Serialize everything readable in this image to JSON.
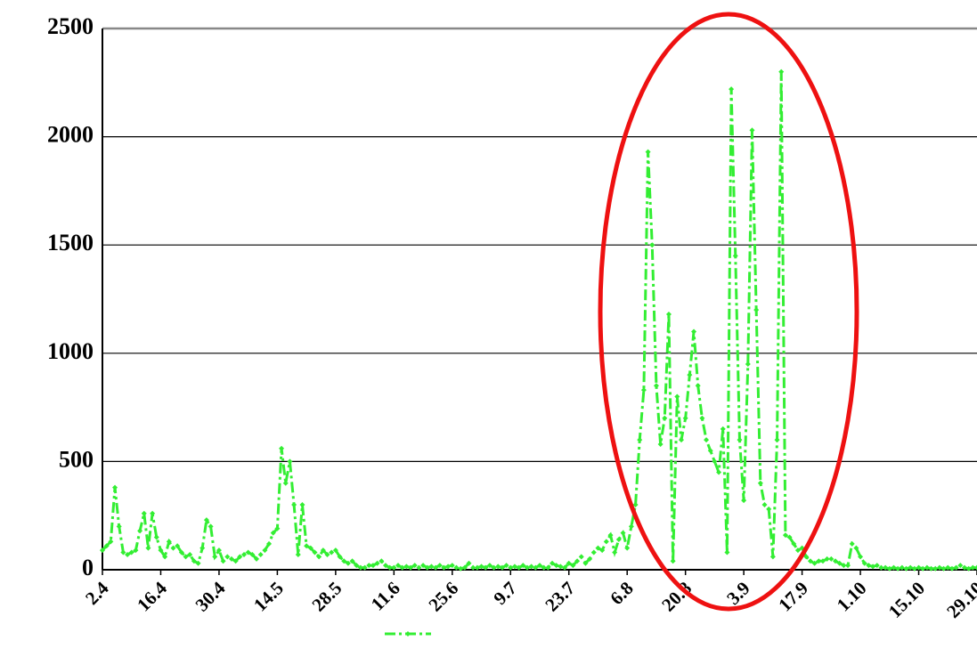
{
  "chart_data": {
    "type": "line",
    "categories": [
      "2.4",
      null,
      null,
      null,
      null,
      null,
      null,
      null,
      null,
      null,
      null,
      null,
      null,
      null,
      "16.4",
      null,
      null,
      null,
      null,
      null,
      null,
      null,
      null,
      null,
      null,
      null,
      null,
      null,
      "30.4",
      null,
      null,
      null,
      null,
      null,
      null,
      null,
      null,
      null,
      null,
      null,
      null,
      null,
      "14.5",
      null,
      null,
      null,
      null,
      null,
      null,
      null,
      null,
      null,
      null,
      null,
      null,
      null,
      "28.5",
      null,
      null,
      null,
      null,
      null,
      null,
      null,
      null,
      null,
      null,
      null,
      null,
      null,
      "11.6",
      null,
      null,
      null,
      null,
      null,
      null,
      null,
      null,
      null,
      null,
      null,
      null,
      null,
      "25.6",
      null,
      null,
      null,
      null,
      null,
      null,
      null,
      null,
      null,
      null,
      null,
      null,
      null,
      "9.7",
      null,
      null,
      null,
      null,
      null,
      null,
      null,
      null,
      null,
      null,
      null,
      null,
      null,
      "23.7",
      null,
      null,
      null,
      null,
      null,
      null,
      null,
      null,
      null,
      null,
      null,
      null,
      null,
      "6.8",
      null,
      null,
      null,
      null,
      null,
      null,
      null,
      null,
      null,
      null,
      null,
      null,
      null,
      "20.8",
      null,
      null,
      null,
      null,
      null,
      null,
      null,
      null,
      null,
      null,
      null,
      null,
      null,
      "3.9",
      null,
      null,
      null,
      null,
      null,
      null,
      null,
      null,
      null,
      null,
      null,
      null,
      null,
      "17.9",
      null,
      null,
      null,
      null,
      null,
      null,
      null,
      null,
      null,
      null,
      null,
      null,
      null,
      "1.10",
      null,
      null,
      null,
      null,
      null,
      null,
      null,
      null,
      null,
      null,
      null,
      null,
      null,
      "15.10",
      null,
      null,
      null,
      null,
      null,
      null,
      null,
      null,
      null,
      null,
      null,
      null,
      null,
      "29.10"
    ],
    "series": [
      {
        "color": "#33ee33",
        "values": [
          90,
          110,
          130,
          380,
          200,
          80,
          70,
          80,
          90,
          180,
          260,
          100,
          260,
          150,
          90,
          60,
          130,
          100,
          110,
          80,
          60,
          70,
          40,
          30,
          100,
          230,
          200,
          60,
          90,
          40,
          60,
          50,
          40,
          60,
          70,
          80,
          70,
          50,
          70,
          90,
          120,
          170,
          190,
          560,
          400,
          500,
          300,
          70,
          300,
          110,
          100,
          80,
          60,
          90,
          70,
          80,
          90,
          60,
          40,
          30,
          40,
          20,
          10,
          10,
          20,
          20,
          30,
          40,
          20,
          10,
          10,
          20,
          10,
          15,
          10,
          20,
          10,
          20,
          10,
          15,
          10,
          20,
          10,
          15,
          20,
          10,
          5,
          10,
          30,
          10,
          10,
          15,
          10,
          20,
          10,
          15,
          10,
          20,
          10,
          15,
          10,
          20,
          10,
          15,
          10,
          20,
          10,
          10,
          30,
          20,
          15,
          10,
          30,
          20,
          40,
          60,
          30,
          50,
          80,
          100,
          90,
          130,
          160,
          80,
          140,
          170,
          100,
          200,
          300,
          600,
          830,
          1930,
          1500,
          850,
          580,
          700,
          1180,
          40,
          800,
          600,
          700,
          900,
          1100,
          850,
          700,
          600,
          550,
          500,
          450,
          650,
          80,
          2220,
          1450,
          600,
          320,
          950,
          2030,
          1200,
          400,
          300,
          280,
          60,
          600,
          2300,
          160,
          150,
          120,
          90,
          100,
          60,
          40,
          30,
          40,
          40,
          50,
          50,
          40,
          30,
          20,
          20,
          120,
          100,
          60,
          30,
          20,
          15,
          20,
          10,
          10,
          5,
          10,
          5,
          10,
          5,
          10,
          5,
          10,
          5,
          10,
          5,
          5,
          10,
          5,
          10,
          5,
          10,
          20,
          10,
          5,
          10,
          10
        ]
      }
    ],
    "ylim": [
      0,
      2500
    ],
    "yticks": [
      0,
      500,
      1000,
      1500,
      2000,
      2500
    ],
    "grid": true
  }
}
